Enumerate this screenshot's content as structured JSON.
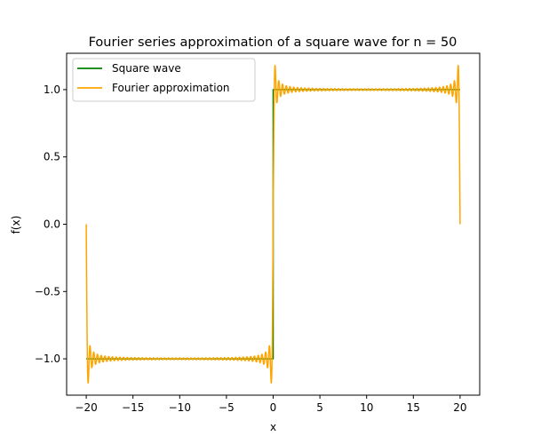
{
  "chart_data": {
    "type": "line",
    "title": "Fourier series approximation of a square wave for n = 50",
    "xlabel": "x",
    "ylabel": "f(x)",
    "xlim": [
      -22.1,
      22.1
    ],
    "ylim": [
      -1.27,
      1.27
    ],
    "x_ticks": [
      -20,
      -15,
      -10,
      -5,
      0,
      5,
      10,
      15,
      20
    ],
    "x_tick_labels": [
      "−20",
      "−15",
      "−10",
      "−5",
      "0",
      "5",
      "10",
      "15",
      "20"
    ],
    "y_ticks": [
      -1.0,
      -0.5,
      0.0,
      0.5,
      1.0
    ],
    "y_tick_labels": [
      "−1.0",
      "−0.5",
      "0.0",
      "0.5",
      "1.0"
    ],
    "grid": false,
    "legend_position": "top-left",
    "x_range": [
      -20,
      20
    ],
    "series": [
      {
        "name": "Square wave",
        "color": "#008000",
        "kind": "square",
        "x": [
          -20,
          0,
          0,
          20
        ],
        "y": [
          -1,
          -1,
          1,
          1
        ]
      },
      {
        "name": "Fourier approximation",
        "color": "#ffa500",
        "kind": "fourier",
        "n_terms": 50,
        "period": 40,
        "samples": 2000
      }
    ]
  }
}
